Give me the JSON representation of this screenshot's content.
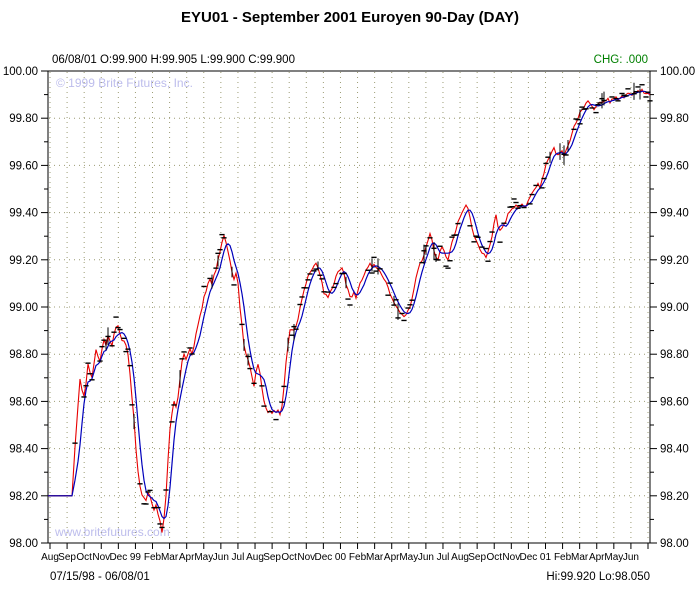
{
  "title": "EYU01 - September 2001 Euroyen 90-Day (DAY)",
  "quote_line": {
    "text": "06/08/01  O:99.900 H:99.905 L:99.900 C:99.900",
    "date": "06/08/01",
    "open": "99.900",
    "high": "99.905",
    "low": "99.900",
    "close": "99.900"
  },
  "change": {
    "text": "CHG: .000",
    "label": "CHG:",
    "value": ".000",
    "color": "#008000"
  },
  "watermarks": {
    "top": "© 1999 Brite Futures, Inc.",
    "bottom": "www.britefutures.com"
  },
  "footer": {
    "date_range": "07/15/98 - 06/08/01",
    "hi_lo": "Hi:99.920 Lo:98.050",
    "hi": "99.920",
    "lo": "98.050"
  },
  "chart_data": {
    "type": "line",
    "title": "EYU01 - September 2001 Euroyen 90-Day (DAY)",
    "grid": {
      "style": "dotted",
      "color": "#9c9c74"
    },
    "marks_color": "#000000",
    "y_axis": {
      "min": 98.0,
      "max": 100.0,
      "tick_step": 0.2,
      "minor_tick_step": 0.1,
      "sides": [
        "left",
        "right"
      ],
      "labels": [
        "100.00",
        "99.80",
        "99.60",
        "99.40",
        "99.20",
        "99.00",
        "98.80",
        "98.60",
        "98.40",
        "98.20",
        "98.00"
      ]
    },
    "x_axis": {
      "start_date": "07/15/98",
      "end_date": "06/08/01",
      "tick_count": 36,
      "labels": [
        "Aug",
        "Sep",
        "Oct",
        "Nov",
        "Dec",
        "99",
        "Feb",
        "Mar",
        "Apr",
        "May",
        "Jun",
        "Jul",
        "Aug",
        "Sep",
        "Oct",
        "Nov",
        "Dec",
        "00",
        "Feb",
        "Mar",
        "Apr",
        "May",
        "Jun",
        "Jul",
        "Aug",
        "Sep",
        "Oct",
        "Nov",
        "Dec",
        "01",
        "Feb",
        "Mar",
        "Apr",
        "May",
        "Jun"
      ]
    },
    "t_note": "t is time position 0-602 spanning 07/15/98 to 06/08/01 (~17.2 units per month)",
    "series": [
      {
        "name": "close-price",
        "color": "#e80000",
        "points": [
          [
            0,
            98.2
          ],
          [
            24,
            98.2
          ],
          [
            27,
            98.4
          ],
          [
            30,
            98.58
          ],
          [
            32,
            98.7
          ],
          [
            34,
            98.65
          ],
          [
            36,
            98.62
          ],
          [
            38,
            98.68
          ],
          [
            40,
            98.76
          ],
          [
            42,
            98.72
          ],
          [
            44,
            98.7
          ],
          [
            46,
            98.76
          ],
          [
            48,
            98.82
          ],
          [
            50,
            98.79
          ],
          [
            52,
            98.77
          ],
          [
            54,
            98.82
          ],
          [
            56,
            98.86
          ],
          [
            58,
            98.84
          ],
          [
            60,
            98.88
          ],
          [
            62,
            98.86
          ],
          [
            64,
            98.84
          ],
          [
            66,
            98.88
          ],
          [
            68,
            98.91
          ],
          [
            70,
            98.92
          ],
          [
            72,
            98.89
          ],
          [
            74,
            98.86
          ],
          [
            76,
            98.85
          ],
          [
            78,
            98.84
          ],
          [
            80,
            98.8
          ],
          [
            82,
            98.72
          ],
          [
            84,
            98.62
          ],
          [
            86,
            98.52
          ],
          [
            88,
            98.4
          ],
          [
            90,
            98.3
          ],
          [
            92,
            98.24
          ],
          [
            94,
            98.2
          ],
          [
            96,
            98.19
          ],
          [
            98,
            98.18
          ],
          [
            100,
            98.21
          ],
          [
            102,
            98.2
          ],
          [
            104,
            98.17
          ],
          [
            106,
            98.14
          ],
          [
            108,
            98.16
          ],
          [
            110,
            98.12
          ],
          [
            112,
            98.09
          ],
          [
            114,
            98.05
          ],
          [
            116,
            98.1
          ],
          [
            118,
            98.2
          ],
          [
            120,
            98.35
          ],
          [
            122,
            98.48
          ],
          [
            124,
            98.55
          ],
          [
            126,
            98.6
          ],
          [
            128,
            98.58
          ],
          [
            130,
            98.62
          ],
          [
            132,
            98.7
          ],
          [
            134,
            98.77
          ],
          [
            136,
            98.8
          ],
          [
            138,
            98.78
          ],
          [
            140,
            98.8
          ],
          [
            142,
            98.82
          ],
          [
            144,
            98.8
          ],
          [
            146,
            98.84
          ],
          [
            148,
            98.88
          ],
          [
            150,
            98.92
          ],
          [
            152,
            98.96
          ],
          [
            154,
            99.0
          ],
          [
            156,
            99.04
          ],
          [
            158,
            99.06
          ],
          [
            160,
            99.1
          ],
          [
            162,
            99.12
          ],
          [
            164,
            99.1
          ],
          [
            166,
            99.13
          ],
          [
            168,
            99.16
          ],
          [
            170,
            99.2
          ],
          [
            172,
            99.24
          ],
          [
            174,
            99.28
          ],
          [
            176,
            99.3
          ],
          [
            178,
            99.28
          ],
          [
            180,
            99.24
          ],
          [
            182,
            99.2
          ],
          [
            184,
            99.15
          ],
          [
            186,
            99.12
          ],
          [
            188,
            99.14
          ],
          [
            190,
            99.1
          ],
          [
            192,
            99.0
          ],
          [
            194,
            98.92
          ],
          [
            196,
            98.84
          ],
          [
            198,
            98.8
          ],
          [
            200,
            98.78
          ],
          [
            202,
            98.74
          ],
          [
            204,
            98.7
          ],
          [
            206,
            98.66
          ],
          [
            208,
            98.72
          ],
          [
            210,
            98.76
          ],
          [
            212,
            98.72
          ],
          [
            214,
            98.66
          ],
          [
            216,
            98.6
          ],
          [
            218,
            98.57
          ],
          [
            220,
            98.55
          ],
          [
            222,
            98.56
          ],
          [
            224,
            98.55
          ],
          [
            226,
            98.56
          ],
          [
            228,
            98.55
          ],
          [
            230,
            98.56
          ],
          [
            232,
            98.55
          ],
          [
            234,
            98.58
          ],
          [
            236,
            98.66
          ],
          [
            238,
            98.76
          ],
          [
            240,
            98.84
          ],
          [
            242,
            98.9
          ],
          [
            244,
            98.91
          ],
          [
            246,
            98.9
          ],
          [
            248,
            98.92
          ],
          [
            250,
            98.95
          ],
          [
            252,
            99.0
          ],
          [
            254,
            99.04
          ],
          [
            256,
            99.07
          ],
          [
            258,
            99.1
          ],
          [
            260,
            99.13
          ],
          [
            262,
            99.15
          ],
          [
            264,
            99.16
          ],
          [
            266,
            99.17
          ],
          [
            268,
            99.18
          ],
          [
            270,
            99.17
          ],
          [
            272,
            99.14
          ],
          [
            274,
            99.1
          ],
          [
            276,
            99.06
          ],
          [
            278,
            99.05
          ],
          [
            280,
            99.04
          ],
          [
            282,
            99.06
          ],
          [
            284,
            99.08
          ],
          [
            286,
            99.1
          ],
          [
            288,
            99.13
          ],
          [
            290,
            99.15
          ],
          [
            292,
            99.16
          ],
          [
            294,
            99.17
          ],
          [
            296,
            99.14
          ],
          [
            298,
            99.1
          ],
          [
            300,
            99.07
          ],
          [
            302,
            99.05
          ],
          [
            304,
            99.04
          ],
          [
            306,
            99.06
          ],
          [
            308,
            99.04
          ],
          [
            310,
            99.07
          ],
          [
            312,
            99.1
          ],
          [
            314,
            99.12
          ],
          [
            316,
            99.14
          ],
          [
            318,
            99.16
          ],
          [
            320,
            99.17
          ],
          [
            322,
            99.18
          ],
          [
            324,
            99.17
          ],
          [
            326,
            99.18
          ],
          [
            328,
            99.17
          ],
          [
            330,
            99.16
          ],
          [
            332,
            99.15
          ],
          [
            334,
            99.13
          ],
          [
            336,
            99.12
          ],
          [
            338,
            99.1
          ],
          [
            340,
            99.08
          ],
          [
            342,
            99.06
          ],
          [
            344,
            99.04
          ],
          [
            346,
            99.02
          ],
          [
            348,
            99.0
          ],
          [
            350,
            98.99
          ],
          [
            352,
            98.98
          ],
          [
            354,
            98.97
          ],
          [
            356,
            98.96
          ],
          [
            358,
            98.97
          ],
          [
            360,
            98.98
          ],
          [
            362,
            99.0
          ],
          [
            364,
            99.04
          ],
          [
            366,
            99.08
          ],
          [
            368,
            99.12
          ],
          [
            370,
            99.16
          ],
          [
            372,
            99.18
          ],
          [
            374,
            99.2
          ],
          [
            376,
            99.22
          ],
          [
            378,
            99.25
          ],
          [
            380,
            99.28
          ],
          [
            382,
            99.31
          ],
          [
            384,
            99.28
          ],
          [
            386,
            99.24
          ],
          [
            388,
            99.21
          ],
          [
            390,
            99.2
          ],
          [
            392,
            99.23
          ],
          [
            394,
            99.26
          ],
          [
            396,
            99.24
          ],
          [
            398,
            99.21
          ],
          [
            400,
            99.2
          ],
          [
            402,
            99.24
          ],
          [
            404,
            99.28
          ],
          [
            406,
            99.3
          ],
          [
            408,
            99.33
          ],
          [
            410,
            99.36
          ],
          [
            412,
            99.38
          ],
          [
            414,
            99.4
          ],
          [
            416,
            99.42
          ],
          [
            418,
            99.43
          ],
          [
            420,
            99.42
          ],
          [
            422,
            99.38
          ],
          [
            424,
            99.34
          ],
          [
            426,
            99.3
          ],
          [
            428,
            99.28
          ],
          [
            430,
            99.26
          ],
          [
            432,
            99.24
          ],
          [
            434,
            99.23
          ],
          [
            436,
            99.22
          ],
          [
            438,
            99.21
          ],
          [
            440,
            99.23
          ],
          [
            442,
            99.26
          ],
          [
            444,
            99.3
          ],
          [
            446,
            99.36
          ],
          [
            448,
            99.39
          ],
          [
            450,
            99.34
          ],
          [
            452,
            99.32
          ],
          [
            454,
            99.33
          ],
          [
            456,
            99.35
          ],
          [
            458,
            99.37
          ],
          [
            460,
            99.39
          ],
          [
            462,
            99.41
          ],
          [
            464,
            99.41
          ],
          [
            466,
            99.42
          ],
          [
            468,
            99.43
          ],
          [
            470,
            99.42
          ],
          [
            472,
            99.43
          ],
          [
            474,
            99.44
          ],
          [
            476,
            99.42
          ],
          [
            478,
            99.43
          ],
          [
            480,
            99.45
          ],
          [
            482,
            99.46
          ],
          [
            484,
            99.48
          ],
          [
            486,
            99.5
          ],
          [
            488,
            99.51
          ],
          [
            490,
            99.52
          ],
          [
            492,
            99.51
          ],
          [
            494,
            99.54
          ],
          [
            496,
            99.57
          ],
          [
            498,
            99.6
          ],
          [
            500,
            99.62
          ],
          [
            502,
            99.64
          ],
          [
            504,
            99.66
          ],
          [
            506,
            99.67
          ],
          [
            508,
            99.65
          ],
          [
            510,
            99.64
          ],
          [
            512,
            99.65
          ],
          [
            514,
            99.66
          ],
          [
            516,
            99.64
          ],
          [
            518,
            99.66
          ],
          [
            520,
            99.69
          ],
          [
            522,
            99.71
          ],
          [
            524,
            99.74
          ],
          [
            526,
            99.76
          ],
          [
            528,
            99.78
          ],
          [
            530,
            99.8
          ],
          [
            532,
            99.82
          ],
          [
            534,
            99.84
          ],
          [
            536,
            99.85
          ],
          [
            538,
            99.86
          ],
          [
            540,
            99.87
          ],
          [
            542,
            99.86
          ],
          [
            544,
            99.85
          ],
          [
            546,
            99.84
          ],
          [
            548,
            99.85
          ],
          [
            550,
            99.86
          ],
          [
            552,
            99.87
          ],
          [
            554,
            99.86
          ],
          [
            556,
            99.87
          ],
          [
            558,
            99.87
          ],
          [
            560,
            99.88
          ],
          [
            562,
            99.87
          ],
          [
            564,
            99.88
          ],
          [
            566,
            99.88
          ],
          [
            568,
            99.89
          ],
          [
            570,
            99.88
          ],
          [
            572,
            99.89
          ],
          [
            574,
            99.9
          ],
          [
            576,
            99.89
          ],
          [
            578,
            99.9
          ],
          [
            580,
            99.9
          ],
          [
            582,
            99.91
          ],
          [
            584,
            99.9
          ],
          [
            586,
            99.91
          ],
          [
            588,
            99.91
          ],
          [
            590,
            99.92
          ],
          [
            592,
            99.91
          ],
          [
            594,
            99.92
          ],
          [
            596,
            99.91
          ],
          [
            598,
            99.9
          ],
          [
            600,
            99.9
          ],
          [
            602,
            99.9
          ]
        ]
      },
      {
        "name": "moving-average",
        "color": "#0000bb",
        "derived": "trailing moving average (5) of close-price"
      }
    ]
  }
}
